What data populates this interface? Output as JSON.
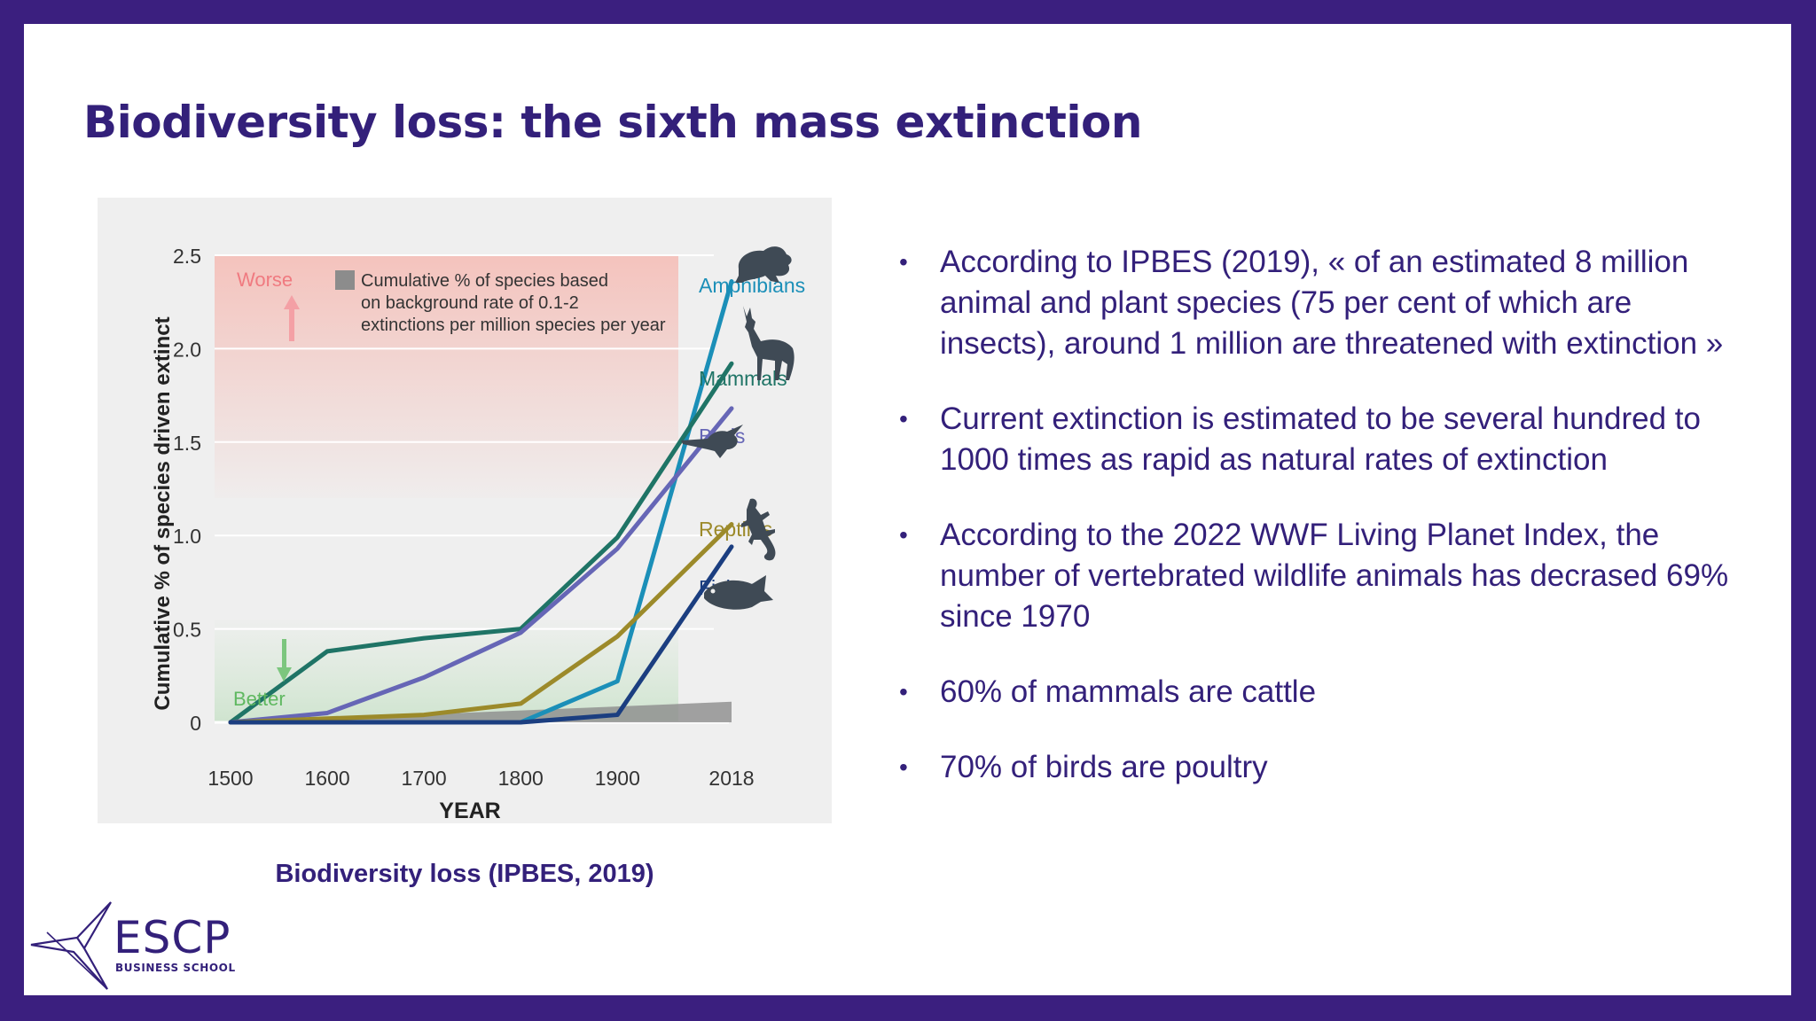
{
  "slide": {
    "title": "Biodiversity loss: the sixth mass extinction",
    "caption": "Biodiversity loss (IPBES, 2019)",
    "bullets": [
      "According to IPBES (2019), « of an estimated 8 million animal and plant species (75 per cent of which are insects), around 1 million are threatened with extinction »",
      "Current extinction is estimated to be several hundred to 1000 times as rapid as natural rates of extinction",
      "According to the 2022 WWF Living Planet Index, the number of vertebrated wildlife animals has decrased 69% since 1970",
      "60% of mammals are cattle",
      "70% of birds are poultry"
    ]
  },
  "logo": {
    "name": "ESCP",
    "subtitle": "BUSINESS SCHOOL",
    "color": "#33207a"
  },
  "chart_data": {
    "type": "line",
    "ylabel": "Cumulative % of species driven extinct",
    "xlabel": "YEAR",
    "x": [
      1500,
      1600,
      1700,
      1800,
      1900,
      2018
    ],
    "x_tick_labels": [
      "1500",
      "1600",
      "1700",
      "1800",
      "1900",
      "2018"
    ],
    "y_ticks": [
      0,
      0.5,
      1.0,
      1.5,
      2.0,
      2.5
    ],
    "y_tick_labels": [
      "0",
      "0.5",
      "1.0",
      "1.5",
      "2.0",
      "2.5"
    ],
    "ylim": [
      0,
      2.5
    ],
    "legend_note": "Cumulative % of species based on background rate of 0.1-2 extinctions per million species per year",
    "worse_label": "Worse",
    "better_label": "Better",
    "background_rate": {
      "x": [
        1500,
        2018
      ],
      "y_start": 0.0,
      "y_end": 0.11
    },
    "series": [
      {
        "name": "Amphibians",
        "color": "#1b8fb8",
        "x": [
          1500,
          1600,
          1700,
          1800,
          1900,
          2018
        ],
        "y": [
          0.0,
          0.0,
          0.0,
          0.0,
          0.22,
          2.36
        ]
      },
      {
        "name": "Mammals",
        "color": "#1f7466",
        "x": [
          1500,
          1600,
          1700,
          1800,
          1900,
          2018
        ],
        "y": [
          0.0,
          0.38,
          0.45,
          0.5,
          0.99,
          1.92
        ]
      },
      {
        "name": "Birds",
        "color": "#6666b6",
        "x": [
          1500,
          1600,
          1700,
          1800,
          1900,
          2018
        ],
        "y": [
          0.0,
          0.05,
          0.24,
          0.48,
          0.93,
          1.68
        ]
      },
      {
        "name": "Reptiles",
        "color": "#9c8a2a",
        "x": [
          1500,
          1600,
          1700,
          1800,
          1900,
          2018
        ],
        "y": [
          0.0,
          0.02,
          0.04,
          0.1,
          0.46,
          1.06
        ]
      },
      {
        "name": "Fishes",
        "color": "#1b3e80",
        "x": [
          1500,
          1600,
          1700,
          1800,
          1900,
          2018
        ],
        "y": [
          0.0,
          0.0,
          0.0,
          0.0,
          0.04,
          0.94
        ]
      }
    ]
  }
}
